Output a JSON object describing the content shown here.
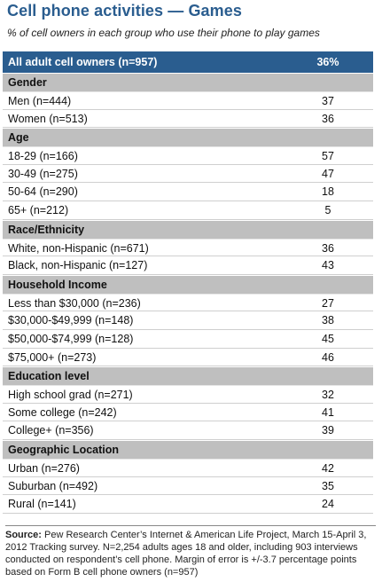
{
  "title": "Cell phone activities — Games",
  "subtitle": "% of cell owners in each group who use their phone to play games",
  "chart_data": {
    "type": "table",
    "total": {
      "label": "All adult cell owners (n=957)",
      "value": "36%"
    },
    "groups": [
      {
        "name": "Gender",
        "rows": [
          {
            "label": "Men (n=444)",
            "value": 37
          },
          {
            "label": "Women (n=513)",
            "value": 36
          }
        ]
      },
      {
        "name": "Age",
        "rows": [
          {
            "label": "18-29 (n=166)",
            "value": 57
          },
          {
            "label": "30-49 (n=275)",
            "value": 47
          },
          {
            "label": "50-64 (n=290)",
            "value": 18
          },
          {
            "label": "65+ (n=212)",
            "value": 5
          }
        ]
      },
      {
        "name": "Race/Ethnicity",
        "rows": [
          {
            "label": "White, non-Hispanic (n=671)",
            "value": 36
          },
          {
            "label": "Black, non-Hispanic (n=127)",
            "value": 43
          }
        ]
      },
      {
        "name": "Household Income",
        "rows": [
          {
            "label": "Less than $30,000 (n=236)",
            "value": 27
          },
          {
            "label": "$30,000-$49,999 (n=148)",
            "value": 38
          },
          {
            "label": "$50,000-$74,999 (n=128)",
            "value": 45
          },
          {
            "label": "$75,000+ (n=273)",
            "value": 46
          }
        ]
      },
      {
        "name": "Education level",
        "rows": [
          {
            "label": "High school grad (n=271)",
            "value": 32
          },
          {
            "label": "Some college (n=242)",
            "value": 41
          },
          {
            "label": "College+ (n=356)",
            "value": 39
          }
        ]
      },
      {
        "name": "Geographic Location",
        "rows": [
          {
            "label": "Urban (n=276)",
            "value": 42
          },
          {
            "label": "Suburban (n=492)",
            "value": 35
          },
          {
            "label": "Rural (n=141)",
            "value": 24
          }
        ]
      }
    ]
  },
  "source": {
    "label": "Source:",
    "text": "Pew Research Center’s Internet & American Life Project, March 15-April 3, 2012 Tracking survey. N=2,254 adults ages 18 and older, including 903 interviews conducted on respondent’s cell phone. Margin of error is +/-3.7 percentage points based on Form B cell phone owners (n=957)"
  }
}
